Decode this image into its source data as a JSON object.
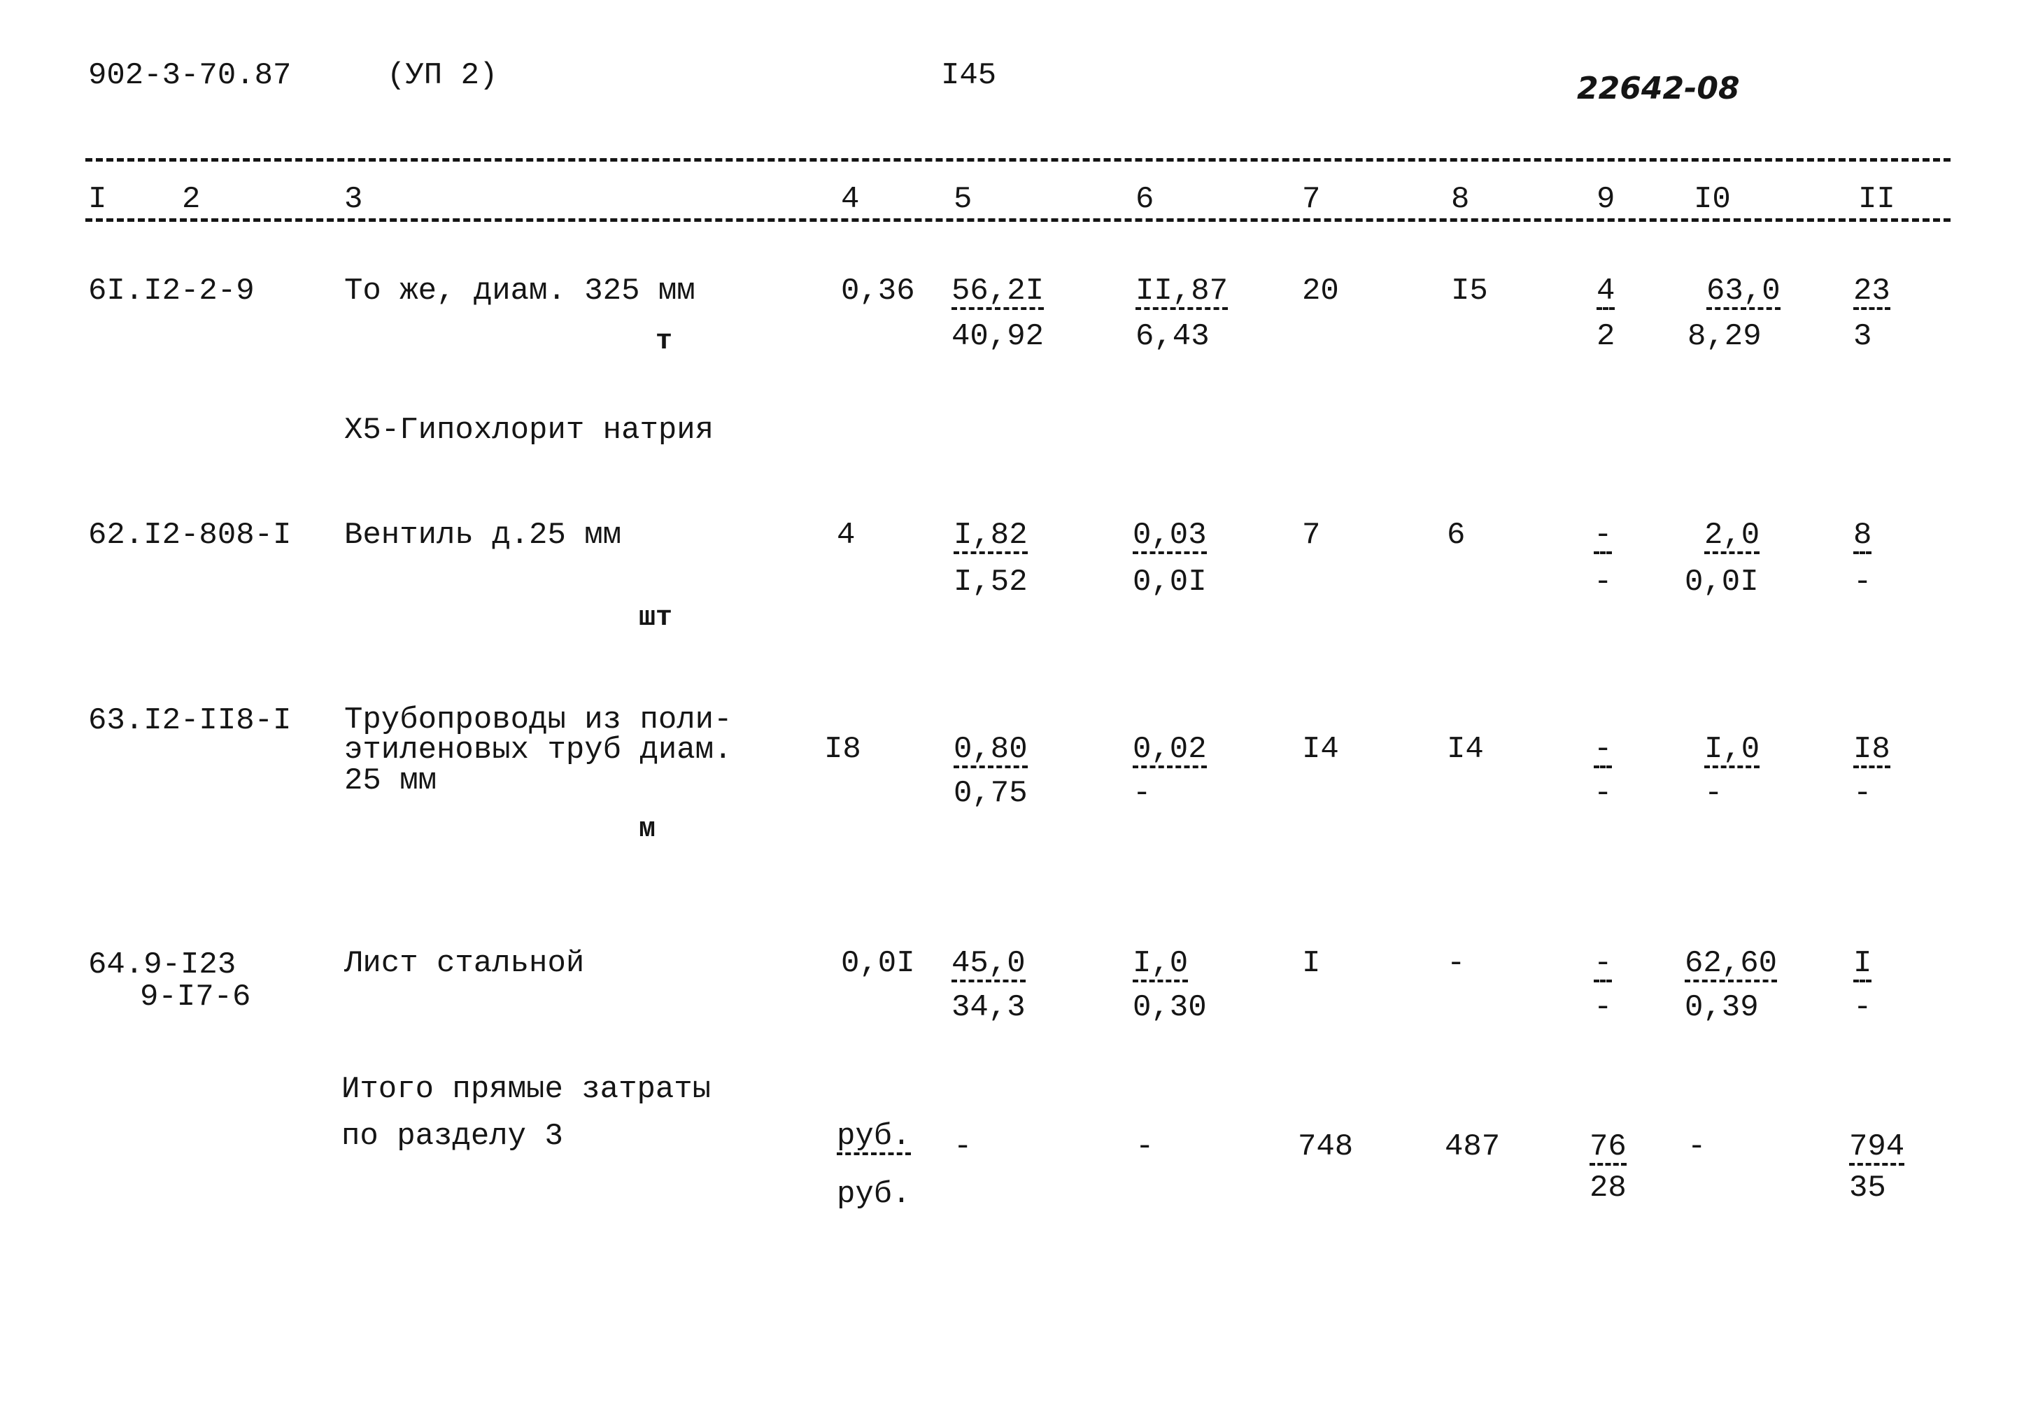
{
  "header": {
    "doc_code": "902-3-70.87",
    "album": "(УП 2)",
    "page": "I45",
    "inventory": "22642-08"
  },
  "columns": [
    "I",
    "2",
    "3",
    "4",
    "5",
    "6",
    "7",
    "8",
    "9",
    "I0",
    "II"
  ],
  "rows": [
    {
      "code": "6I.I2-2-9",
      "desc": "То же, диам. 325 мм",
      "unit": "т",
      "c4": "0,36",
      "c5": [
        "56,2I",
        "40,92"
      ],
      "c6": [
        "II,87",
        "6,43"
      ],
      "c7": "20",
      "c8": "I5",
      "c9": [
        "4",
        "2"
      ],
      "c10": [
        "63,0",
        "8,29"
      ],
      "c11": [
        "23",
        "3"
      ]
    },
    {
      "section": "Х5-Гипохлорит натрия"
    },
    {
      "code": "62.I2-808-I",
      "desc": "Вентиль д.25 мм",
      "unit": "шт",
      "c4": "4",
      "c5": [
        "I,82",
        "I,52"
      ],
      "c6": [
        "0,03",
        "0,0I"
      ],
      "c7": "7",
      "c8": "6",
      "c9": [
        "-",
        "-"
      ],
      "c10": [
        "2,0",
        "0,0I"
      ],
      "c11": [
        "8",
        "-"
      ]
    },
    {
      "code": "63.I2-II8-I",
      "desc": [
        "Трубопроводы из поли-",
        "этиленовых труб диам.",
        "25 мм"
      ],
      "unit": "м",
      "c4": "I8",
      "c5": [
        "0,80",
        "0,75"
      ],
      "c6": [
        "0,02",
        "-"
      ],
      "c7": "I4",
      "c8": "I4",
      "c9": [
        "-",
        "-"
      ],
      "c10": [
        "I,0",
        "-"
      ],
      "c11": [
        "I8",
        "-"
      ]
    },
    {
      "code": [
        "64.9-I23",
        "9-I7-6"
      ],
      "desc": "Лист стальной",
      "c4": "0,0I",
      "c5": [
        "45,0",
        "34,3"
      ],
      "c6": [
        "I,0",
        "0,30"
      ],
      "c7": "I",
      "c8": "-",
      "c9": [
        "-",
        "-"
      ],
      "c10": [
        "62,60",
        "0,39"
      ],
      "c11": [
        "I",
        "-"
      ]
    }
  ],
  "total": {
    "label": [
      "Итого прямые затраты",
      "по разделу 3"
    ],
    "unit": [
      "руб.",
      "руб."
    ],
    "c5": "-",
    "c6": "-",
    "c7": "748",
    "c8": "487",
    "c9": [
      "76",
      "28"
    ],
    "c10": "-",
    "c11": [
      "794",
      "35"
    ]
  }
}
